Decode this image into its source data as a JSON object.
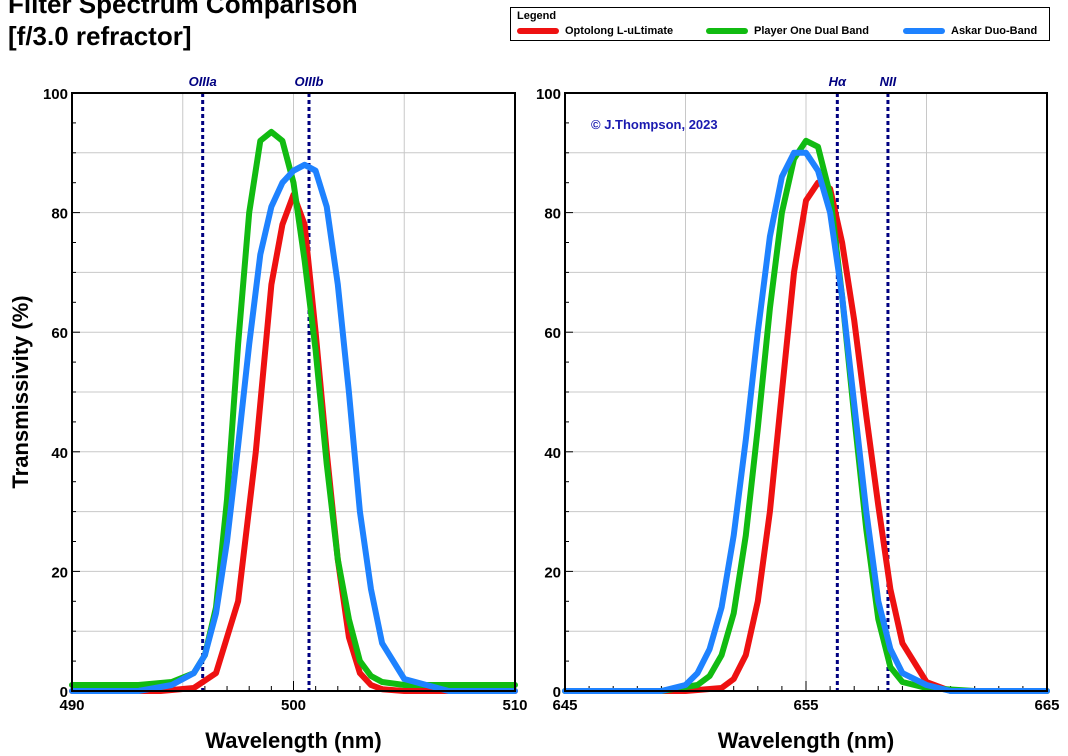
{
  "title_lines": [
    "Filter Spectrum Comparison",
    "[f/3.0 refractor]"
  ],
  "legend": {
    "title": "Legend",
    "items": [
      {
        "label": "Optolong L-uLtimate",
        "color": "#ee1111"
      },
      {
        "label": "Player One Dual Band",
        "color": "#11bb11"
      },
      {
        "label": "Askar Duo-Band",
        "color": "#1e82ff"
      }
    ]
  },
  "chart_data": [
    {
      "type": "line",
      "xlabel": "Wavelength (nm)",
      "ylabel": "Transmissivity (%)",
      "xlim": [
        490,
        510
      ],
      "ylim": [
        0,
        100
      ],
      "xticks": [
        490,
        500,
        510
      ],
      "yticks": [
        0,
        20,
        40,
        60,
        80,
        100
      ],
      "grid": true,
      "markers": [
        {
          "label": "OIIIa",
          "x": 495.9
        },
        {
          "label": "OIIIb",
          "x": 500.7
        }
      ],
      "series": [
        {
          "name": "Optolong L-uLtimate",
          "color": "#ee1111",
          "x": [
            490,
            494,
            495.5,
            496.5,
            497.5,
            498.3,
            499,
            499.5,
            500,
            500.5,
            501,
            501.5,
            502,
            502.5,
            503,
            503.5,
            504,
            505,
            507,
            510
          ],
          "y": [
            0,
            0,
            0.5,
            3,
            15,
            40,
            68,
            78,
            83,
            78,
            60,
            40,
            22,
            9,
            3,
            1,
            0.3,
            0,
            0,
            0
          ]
        },
        {
          "name": "Player One Dual Band",
          "color": "#11bb11",
          "x": [
            490,
            493,
            494.5,
            495.5,
            496,
            496.5,
            497,
            497.5,
            498,
            498.5,
            499,
            499.5,
            500,
            500.5,
            501,
            501.5,
            502,
            502.5,
            503,
            503.5,
            504,
            505,
            507,
            510
          ],
          "y": [
            1,
            1,
            1.5,
            3,
            6,
            14,
            32,
            58,
            80,
            92,
            93.5,
            92,
            85,
            72,
            57,
            38,
            22,
            12,
            5,
            2.5,
            1.5,
            1,
            1,
            1
          ]
        },
        {
          "name": "Askar Duo-Band",
          "color": "#1e82ff",
          "x": [
            490,
            493,
            494.5,
            495.5,
            496,
            496.5,
            497,
            497.5,
            498,
            498.5,
            499,
            499.5,
            500,
            500.5,
            501,
            501.5,
            502,
            502.5,
            503,
            503.5,
            504,
            505,
            507,
            510
          ],
          "y": [
            0,
            0,
            1,
            3,
            6,
            13,
            25,
            41,
            58,
            73,
            81,
            85,
            87,
            88,
            87,
            81,
            68,
            50,
            30,
            17,
            8,
            2,
            0,
            0
          ]
        }
      ]
    },
    {
      "type": "line",
      "xlabel": "Wavelength (nm)",
      "ylabel": "",
      "xlim": [
        645,
        665
      ],
      "ylim": [
        0,
        100
      ],
      "xticks": [
        645,
        655,
        665
      ],
      "yticks": [
        0,
        20,
        40,
        60,
        80,
        100
      ],
      "grid": true,
      "annotation": "© J.Thompson, 2023",
      "markers": [
        {
          "label": "Hα",
          "x": 656.3
        },
        {
          "label": "NII",
          "x": 658.4
        }
      ],
      "series": [
        {
          "name": "Optolong L-uLtimate",
          "color": "#ee1111",
          "x": [
            645,
            650,
            651.5,
            652,
            652.5,
            653,
            653.5,
            654,
            654.5,
            655,
            655.5,
            656,
            656.5,
            657,
            657.5,
            658,
            658.5,
            659,
            660,
            661,
            665
          ],
          "y": [
            0,
            0,
            0.5,
            2,
            6,
            15,
            30,
            50,
            70,
            82,
            85,
            84,
            75,
            62,
            46,
            31,
            17,
            8,
            1.5,
            0,
            0
          ]
        },
        {
          "name": "Player One Dual Band",
          "color": "#11bb11",
          "x": [
            645,
            649,
            650.5,
            651,
            651.5,
            652,
            652.5,
            653,
            653.5,
            654,
            654.5,
            655,
            655.5,
            656,
            656.5,
            657,
            657.5,
            658,
            658.5,
            659,
            660,
            662,
            665
          ],
          "y": [
            0,
            0,
            1,
            2.5,
            6,
            13,
            26,
            44,
            64,
            80,
            89,
            92,
            91,
            83,
            66,
            46,
            27,
            12,
            4,
            1.5,
            0.5,
            0,
            0
          ]
        },
        {
          "name": "Askar Duo-Band",
          "color": "#1e82ff",
          "x": [
            645,
            649,
            650,
            650.5,
            651,
            651.5,
            652,
            652.5,
            653,
            653.5,
            654,
            654.5,
            655,
            655.5,
            656,
            656.5,
            657,
            657.5,
            658,
            658.5,
            659,
            660,
            661,
            665
          ],
          "y": [
            0,
            0,
            1,
            3,
            7,
            14,
            26,
            42,
            60,
            76,
            86,
            90,
            90,
            87,
            80,
            66,
            48,
            30,
            15,
            7,
            3,
            1,
            0,
            0
          ]
        }
      ]
    }
  ]
}
